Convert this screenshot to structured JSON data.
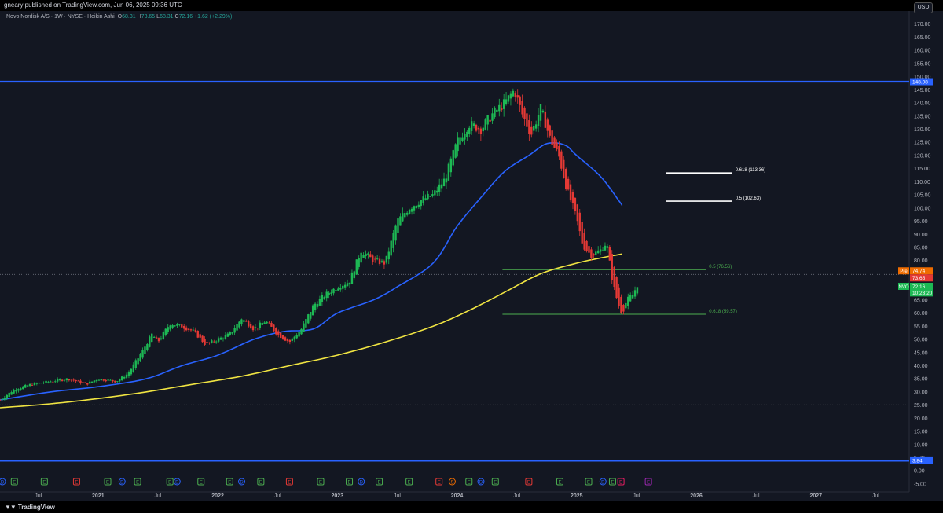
{
  "header": {
    "publish_text": "gneary published on TradingView.com, Jun 06, 2025 09:36 UTC"
  },
  "legend": {
    "symbol": "Novo Nordisk A/S · 1W · NYSE · Heikin Ashi",
    "open_label": "O",
    "open": "68.31",
    "high_label": "H",
    "high": "73.65",
    "low_label": "L",
    "low": "68.31",
    "close_label": "C",
    "close": "72.16",
    "change": "+1.62 (+2.29%)"
  },
  "currency": "USD",
  "footer": {
    "brand": "TradingView"
  },
  "colors": {
    "background": "#131722",
    "up": "#1db954",
    "down": "#e53935",
    "ma_fast": "#2962ff",
    "ma_slow": "#f0e442",
    "hline": "#2962ff",
    "fib": "#4caf50",
    "fib_white": "#ffffff"
  },
  "chart_data": {
    "type": "candlestick",
    "title": "Novo Nordisk A/S · 1W · NYSE · Heikin Ashi",
    "ylim": [
      -8,
      175
    ],
    "y_ticks": [
      -5,
      0,
      5,
      10,
      15,
      20,
      25,
      30,
      35,
      40,
      45,
      50,
      55,
      60,
      65,
      70,
      75,
      80,
      85,
      90,
      95,
      100,
      105,
      110,
      115,
      120,
      125,
      130,
      135,
      140,
      145,
      150,
      155,
      160,
      165,
      170
    ],
    "x_ticks": [
      {
        "label": "Jul",
        "t": 2020.5
      },
      {
        "label": "2021",
        "t": 2021.0
      },
      {
        "label": "Jul",
        "t": 2021.5
      },
      {
        "label": "2022",
        "t": 2022.0
      },
      {
        "label": "Jul",
        "t": 2022.5
      },
      {
        "label": "2023",
        "t": 2023.0
      },
      {
        "label": "Jul",
        "t": 2023.5
      },
      {
        "label": "2024",
        "t": 2024.0
      },
      {
        "label": "Jul",
        "t": 2024.5
      },
      {
        "label": "2025",
        "t": 2025.0
      },
      {
        "label": "Jul",
        "t": 2025.5
      },
      {
        "label": "2026",
        "t": 2026.0
      },
      {
        "label": "Jul",
        "t": 2026.5
      },
      {
        "label": "2027",
        "t": 2027.0
      },
      {
        "label": "Jul",
        "t": 2027.5
      }
    ],
    "xlim": [
      2020.18,
      2027.78
    ],
    "price_path": [
      [
        2020.18,
        27
      ],
      [
        2020.3,
        31
      ],
      [
        2020.45,
        33
      ],
      [
        2020.6,
        34
      ],
      [
        2020.75,
        35
      ],
      [
        2020.9,
        33
      ],
      [
        2021.0,
        35
      ],
      [
        2021.15,
        34
      ],
      [
        2021.25,
        37
      ],
      [
        2021.35,
        44
      ],
      [
        2021.45,
        52
      ],
      [
        2021.5,
        49
      ],
      [
        2021.6,
        56
      ],
      [
        2021.7,
        55
      ],
      [
        2021.8,
        53
      ],
      [
        2021.9,
        48
      ],
      [
        2022.0,
        50
      ],
      [
        2022.1,
        52
      ],
      [
        2022.2,
        58
      ],
      [
        2022.3,
        54
      ],
      [
        2022.4,
        57
      ],
      [
        2022.5,
        52
      ],
      [
        2022.6,
        49
      ],
      [
        2022.7,
        54
      ],
      [
        2022.8,
        63
      ],
      [
        2022.9,
        67
      ],
      [
        2023.0,
        70
      ],
      [
        2023.1,
        72
      ],
      [
        2023.2,
        84
      ],
      [
        2023.3,
        80
      ],
      [
        2023.4,
        79
      ],
      [
        2023.5,
        95
      ],
      [
        2023.6,
        100
      ],
      [
        2023.7,
        103
      ],
      [
        2023.8,
        105
      ],
      [
        2023.9,
        111
      ],
      [
        2024.0,
        125
      ],
      [
        2024.1,
        132
      ],
      [
        2024.2,
        130
      ],
      [
        2024.3,
        136
      ],
      [
        2024.4,
        140
      ],
      [
        2024.48,
        145
      ],
      [
        2024.55,
        135
      ],
      [
        2024.62,
        128
      ],
      [
        2024.7,
        138
      ],
      [
        2024.78,
        126
      ],
      [
        2024.85,
        120
      ],
      [
        2024.92,
        107
      ],
      [
        2025.0,
        96
      ],
      [
        2025.05,
        86
      ],
      [
        2025.12,
        82
      ],
      [
        2025.2,
        84
      ],
      [
        2025.25,
        87
      ],
      [
        2025.3,
        72
      ],
      [
        2025.35,
        63
      ],
      [
        2025.38,
        60
      ],
      [
        2025.42,
        65
      ],
      [
        2025.47,
        67
      ],
      [
        2025.52,
        72.16
      ]
    ],
    "series": [
      {
        "name": "MA fast",
        "points": [
          [
            2020.18,
            27
          ],
          [
            2020.6,
            30
          ],
          [
            2021.0,
            32
          ],
          [
            2021.4,
            35
          ],
          [
            2021.7,
            40
          ],
          [
            2022.0,
            44
          ],
          [
            2022.3,
            50
          ],
          [
            2022.55,
            53
          ],
          [
            2022.8,
            54
          ],
          [
            2023.0,
            60
          ],
          [
            2023.3,
            65
          ],
          [
            2023.5,
            70
          ],
          [
            2023.8,
            79
          ],
          [
            2024.0,
            93
          ],
          [
            2024.2,
            104
          ],
          [
            2024.4,
            114
          ],
          [
            2024.6,
            120
          ],
          [
            2024.75,
            124.5
          ],
          [
            2024.9,
            124
          ],
          [
            2025.0,
            120
          ],
          [
            2025.2,
            112
          ],
          [
            2025.35,
            103
          ],
          [
            2025.38,
            101
          ]
        ]
      },
      {
        "name": "MA slow",
        "points": [
          [
            2020.18,
            24
          ],
          [
            2020.6,
            25.5
          ],
          [
            2021.0,
            27.5
          ],
          [
            2021.4,
            30
          ],
          [
            2021.8,
            33
          ],
          [
            2022.2,
            36
          ],
          [
            2022.6,
            40
          ],
          [
            2023.0,
            44
          ],
          [
            2023.4,
            49
          ],
          [
            2023.8,
            55
          ],
          [
            2024.1,
            61
          ],
          [
            2024.4,
            68
          ],
          [
            2024.7,
            75
          ],
          [
            2025.0,
            79
          ],
          [
            2025.2,
            81
          ],
          [
            2025.38,
            82.5
          ]
        ]
      }
    ],
    "horizontal_levels": [
      {
        "price": 148.08,
        "label": "148.08",
        "style": "solid-blue"
      },
      {
        "price": 3.84,
        "label": "3.84",
        "style": "solid-blue"
      },
      {
        "price": 74.74,
        "style": "dotted"
      },
      {
        "price": 25.1,
        "style": "dotted"
      }
    ],
    "fib_levels": [
      {
        "price": 113.36,
        "label": "0.618 (113.36)",
        "x_start": 2025.75,
        "x_end": 2026.3,
        "color": "white"
      },
      {
        "price": 102.63,
        "label": "0.5 (102.63)",
        "x_start": 2025.75,
        "x_end": 2026.3,
        "color": "white"
      },
      {
        "price": 76.56,
        "label": "0.5 (76.56)",
        "x_start": 2024.38,
        "x_end": 2026.08,
        "color": "green"
      },
      {
        "price": 59.57,
        "label": "0.618 (59.57)",
        "x_start": 2024.38,
        "x_end": 2026.08,
        "color": "green"
      }
    ],
    "price_tags": [
      {
        "label": "148.08",
        "price": 148.08,
        "bg": "#2962ff"
      },
      {
        "label": "74.74",
        "prefix": "Pre",
        "price": 76.1,
        "bg": "#ef6c00"
      },
      {
        "label": "73.65",
        "price": 73.4,
        "bg": "#e53935"
      },
      {
        "label": "72.16",
        "prefix": "NVO",
        "price": 70.2,
        "bg": "#1db954"
      },
      {
        "label": "10:23:20",
        "price": 67.7,
        "bg": "#1db954"
      },
      {
        "label": "3.84",
        "price": 3.84,
        "bg": "#2962ff"
      }
    ],
    "events": [
      {
        "t": 2020.2,
        "e": "D",
        "c": "#2962ff"
      },
      {
        "t": 2020.3,
        "e": "E",
        "c": "#4caf50"
      },
      {
        "t": 2020.55,
        "e": "E",
        "c": "#4caf50"
      },
      {
        "t": 2020.82,
        "e": "E",
        "c": "#e53935"
      },
      {
        "t": 2021.08,
        "e": "E",
        "c": "#4caf50"
      },
      {
        "t": 2021.2,
        "e": "D",
        "c": "#2962ff"
      },
      {
        "t": 2021.33,
        "e": "E",
        "c": "#4caf50"
      },
      {
        "t": 2021.6,
        "e": "E",
        "c": "#4caf50"
      },
      {
        "t": 2021.66,
        "e": "D",
        "c": "#2962ff"
      },
      {
        "t": 2021.86,
        "e": "E",
        "c": "#4caf50"
      },
      {
        "t": 2022.1,
        "e": "E",
        "c": "#4caf50"
      },
      {
        "t": 2022.2,
        "e": "D",
        "c": "#2962ff"
      },
      {
        "t": 2022.36,
        "e": "E",
        "c": "#4caf50"
      },
      {
        "t": 2022.6,
        "e": "E",
        "c": "#e53935"
      },
      {
        "t": 2022.86,
        "e": "E",
        "c": "#4caf50"
      },
      {
        "t": 2023.1,
        "e": "E",
        "c": "#4caf50"
      },
      {
        "t": 2023.2,
        "e": "D",
        "c": "#2962ff"
      },
      {
        "t": 2023.35,
        "e": "E",
        "c": "#4caf50"
      },
      {
        "t": 2023.6,
        "e": "E",
        "c": "#4caf50"
      },
      {
        "t": 2023.85,
        "e": "E",
        "c": "#e53935"
      },
      {
        "t": 2023.96,
        "e": "S",
        "c": "#ef6c00"
      },
      {
        "t": 2024.1,
        "e": "E",
        "c": "#4caf50"
      },
      {
        "t": 2024.2,
        "e": "D",
        "c": "#2962ff"
      },
      {
        "t": 2024.32,
        "e": "E",
        "c": "#4caf50"
      },
      {
        "t": 2024.6,
        "e": "E",
        "c": "#e53935"
      },
      {
        "t": 2024.86,
        "e": "E",
        "c": "#4caf50"
      },
      {
        "t": 2025.1,
        "e": "E",
        "c": "#4caf50"
      },
      {
        "t": 2025.22,
        "e": "D",
        "c": "#2962ff"
      },
      {
        "t": 2025.3,
        "e": "E",
        "c": "#4caf50"
      },
      {
        "t": 2025.37,
        "e": "E",
        "c": "#e91e63"
      },
      {
        "t": 2025.6,
        "e": "E",
        "c": "#9c27b0"
      }
    ]
  }
}
